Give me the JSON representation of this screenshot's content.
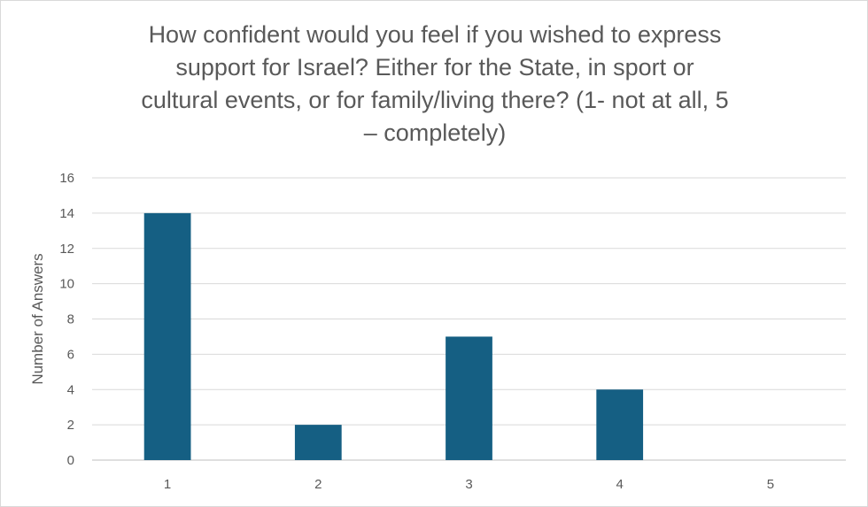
{
  "chart_data": {
    "type": "bar",
    "title": "How confident would you feel if you wished to express support for Israel? Either for the State, in sport or cultural events, or for family/living there? (1- not at all, 5 – completely)",
    "title_lines": [
      "How confident would you feel if you wished to express",
      "support for Israel? Either for the State, in sport or",
      "cultural events, or for family/living there? (1- not at all, 5",
      "– completely)"
    ],
    "xlabel": "",
    "ylabel": "Number of Answers",
    "categories": [
      "1",
      "2",
      "3",
      "4",
      "5"
    ],
    "values": [
      14,
      2,
      7,
      4,
      0
    ],
    "ylim": [
      0,
      16
    ],
    "yticks": [
      0,
      2,
      4,
      6,
      8,
      10,
      12,
      14,
      16
    ],
    "grid": true,
    "legend": "none",
    "bar_color": "#155f83",
    "grid_color": "#d9d9d9",
    "text_color": "#595959"
  }
}
